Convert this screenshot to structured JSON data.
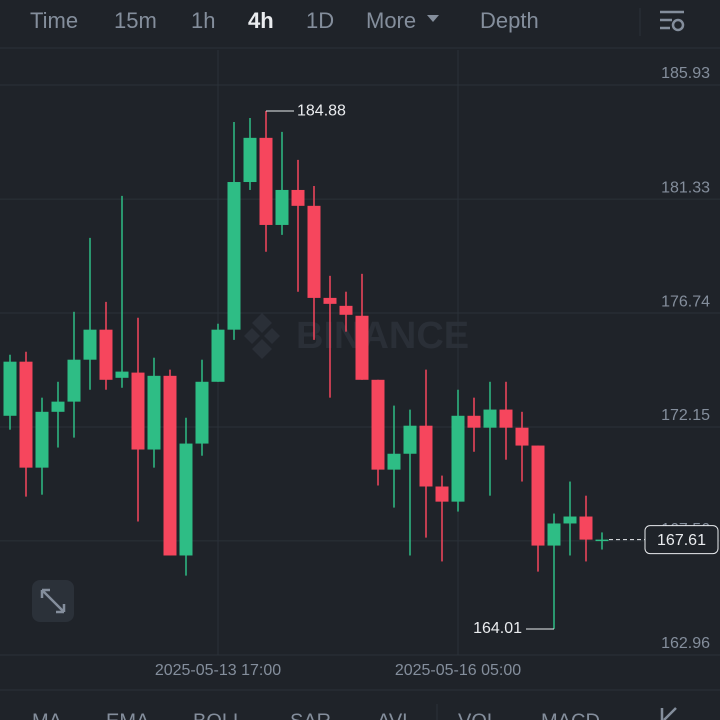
{
  "toolbar": {
    "tabs": [
      "Time",
      "15m",
      "1h",
      "4h",
      "1D",
      "More",
      "Depth"
    ],
    "active": "4h"
  },
  "watermark": "BINANCE",
  "indicators": [
    "MA",
    "EMA",
    "BOLL",
    "SAR",
    "AVL",
    "VOL",
    "MACD"
  ],
  "chart_data": {
    "type": "candlestick",
    "categories": [
      null,
      null,
      null,
      null,
      null,
      null,
      null,
      null,
      null,
      null,
      null,
      null,
      null,
      "2025-05-13 17:00",
      null,
      null,
      null,
      null,
      null,
      null,
      null,
      null,
      null,
      null,
      null,
      null,
      null,
      null,
      "2025-05-16 05:00",
      null,
      null,
      null,
      null,
      null,
      null,
      null,
      null,
      null
    ],
    "open": [
      172.6,
      174.78,
      170.51,
      172.76,
      173.17,
      174.86,
      176.07,
      174.13,
      174.34,
      171.24,
      174.21,
      166.97,
      171.48,
      173.97,
      176.07,
      182.02,
      183.8,
      180.29,
      181.7,
      181.06,
      177.35,
      177.03,
      176.63,
      174.05,
      170.43,
      171.07,
      172.2,
      169.75,
      169.14,
      172.6,
      172.12,
      172.85,
      172.12,
      171.4,
      167.37,
      168.26,
      168.54,
      167.57
    ],
    "high": [
      175.06,
      175.18,
      173.33,
      173.97,
      176.79,
      179.77,
      177.19,
      181.46,
      176.55,
      174.94,
      174.46,
      172.52,
      174.86,
      176.31,
      184.44,
      184.6,
      184.88,
      184.04,
      182.91,
      181.86,
      178.24,
      177.6,
      178.32,
      174.05,
      173.01,
      172.85,
      174.46,
      170.19,
      173.65,
      173.33,
      173.97,
      173.97,
      172.76,
      171.4,
      168.66,
      169.95,
      169.38,
      167.9
    ],
    "low": [
      172.04,
      169.34,
      169.42,
      171.32,
      171.72,
      173.65,
      173.65,
      173.73,
      168.34,
      170.51,
      166.97,
      166.16,
      170.99,
      173.97,
      175.66,
      181.7,
      179.21,
      179.89,
      177.6,
      175.66,
      173.33,
      175.99,
      174.05,
      169.79,
      168.9,
      166.97,
      167.69,
      166.73,
      168.74,
      171.15,
      169.38,
      170.83,
      169.95,
      166.32,
      164.01,
      166.97,
      166.73,
      167.21
    ],
    "close": [
      174.78,
      170.51,
      172.76,
      173.17,
      174.86,
      176.07,
      174.05,
      174.38,
      171.24,
      174.21,
      166.97,
      171.48,
      173.97,
      176.07,
      182.02,
      183.8,
      180.29,
      181.7,
      181.06,
      177.35,
      177.11,
      176.67,
      174.05,
      170.43,
      171.07,
      172.2,
      169.75,
      169.14,
      172.6,
      172.12,
      172.85,
      172.12,
      171.4,
      167.37,
      168.26,
      168.54,
      167.61,
      167.61
    ],
    "up_color": "#2ebd85",
    "down_color": "#f6465d",
    "ylim": [
      162.96,
      187.34
    ],
    "yticks": [
      185.93,
      181.33,
      176.74,
      172.15,
      167.56,
      162.96
    ],
    "grid": true,
    "annotations": {
      "high": 184.88,
      "low": 164.01,
      "last": 167.61
    }
  }
}
